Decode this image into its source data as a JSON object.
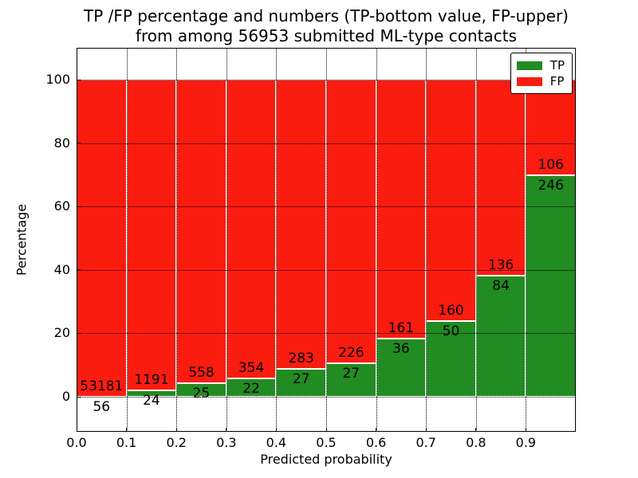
{
  "title": {
    "line1": "TP /FP percentage and numbers (TP-bottom value, FP-upper)",
    "line2": "from among 56953 submitted ML-type contacts"
  },
  "axes": {
    "xlabel": "Predicted probability",
    "ylabel": "Percentage",
    "xtick_labels": [
      "0.0",
      "0.1",
      "0.2",
      "0.3",
      "0.4",
      "0.5",
      "0.6",
      "0.7",
      "0.8",
      "0.9"
    ],
    "ytick_labels": [
      "0",
      "20",
      "40",
      "60",
      "80",
      "100"
    ]
  },
  "legend": {
    "items": [
      {
        "label": "TP",
        "color": "#228b22"
      },
      {
        "label": "FP",
        "color": "#fb1c10"
      }
    ]
  },
  "chart_data": {
    "type": "bar",
    "stacked": true,
    "normalized": "each bin scaled so TP%+FP% = 100",
    "title": "TP /FP percentage and numbers (TP-bottom value, FP-upper) from among 56953 submitted ML-type contacts",
    "xlabel": "Predicted probability",
    "ylabel": "Percentage",
    "total_contacts": 56953,
    "bin_edges": [
      0.0,
      0.1,
      0.2,
      0.3,
      0.4,
      0.5,
      0.6,
      0.7,
      0.8,
      0.9,
      1.0
    ],
    "series": [
      {
        "name": "TP",
        "color": "#228b22",
        "counts": [
          56,
          24,
          25,
          22,
          27,
          27,
          36,
          50,
          84,
          246
        ]
      },
      {
        "name": "FP",
        "color": "#fb1c10",
        "counts": [
          53181,
          1191,
          558,
          354,
          283,
          226,
          161,
          160,
          136,
          106
        ]
      }
    ],
    "tp_share_pct": [
      0.11,
      1.98,
      4.29,
      5.85,
      8.71,
      10.67,
      18.27,
      23.81,
      38.18,
      69.89
    ],
    "xlim": [
      0.0,
      1.0
    ],
    "ylim": [
      -11.05,
      110.05
    ],
    "xticks": [
      0.0,
      0.1,
      0.2,
      0.3,
      0.4,
      0.5,
      0.6,
      0.7,
      0.8,
      0.9
    ],
    "yticks": [
      0,
      20,
      40,
      60,
      80,
      100
    ],
    "grid": "dotted black lines at all x and y ticks",
    "bar_edge_color": "#ffffff",
    "legend_position": "upper right"
  }
}
